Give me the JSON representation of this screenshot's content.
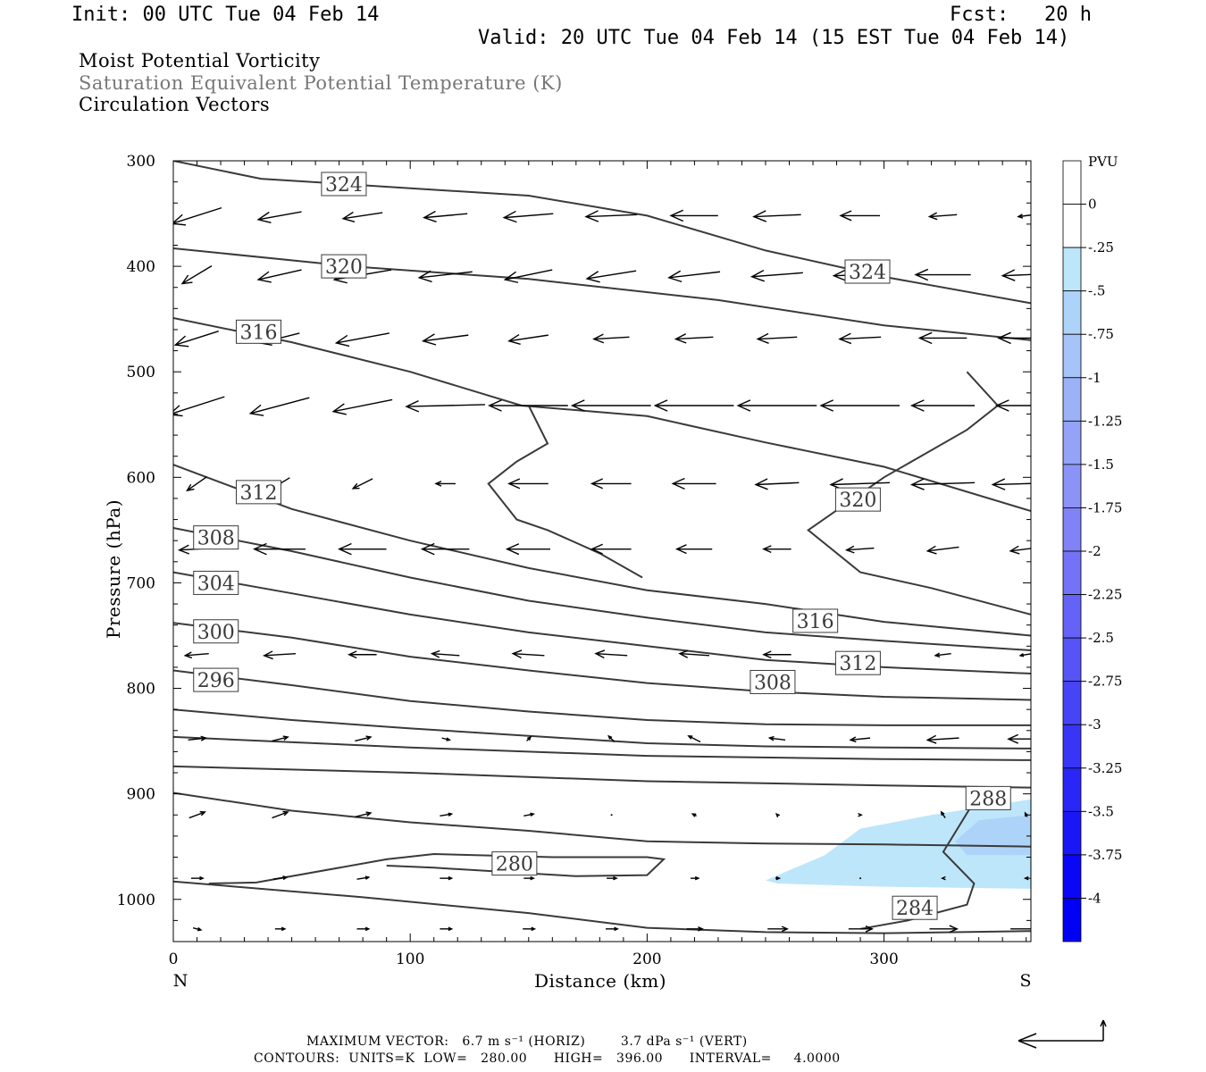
{
  "header": {
    "init": "Init: 00 UTC Tue 04 Feb 14",
    "fcst": "Fcst:   20 h",
    "valid": "Valid: 20 UTC Tue 04 Feb 14 (15 EST Tue 04 Feb 14)"
  },
  "titles": {
    "line1": "Moist Potential Vorticity",
    "line2": "Saturation Equivalent Potential Temperature (K)",
    "line3": "Circulation Vectors"
  },
  "chart_data": {
    "type": "cross-section",
    "xlabel": "Distance (km)",
    "ylabel": "Pressure (hPa)",
    "xlim": [
      0,
      362
    ],
    "ylim": [
      1040,
      300
    ],
    "x_ticks": [
      0,
      100,
      200,
      300
    ],
    "y_ticks": [
      300,
      400,
      500,
      600,
      700,
      800,
      900,
      1000
    ],
    "x_end_labels": {
      "left": "N",
      "right": "S"
    },
    "colors": {
      "line": "#3a3a3a",
      "pv_light": "#bde6fb",
      "pv_mid": "#aed3f8",
      "vector": "#000000"
    },
    "colorbar": {
      "title": "PVU",
      "labels": [
        "0",
        "-.25",
        "-.5",
        "-.75",
        "-1",
        "-1.25",
        "-1.5",
        "-1.75",
        "-2",
        "-2.25",
        "-2.5",
        "-2.75",
        "-3",
        "-3.25",
        "-3.5",
        "-3.75",
        "-4"
      ],
      "colors": [
        "#ffffff",
        "#ffffff",
        "#bde6fb",
        "#aed3f8",
        "#a6c4f7",
        "#9cb2f7",
        "#94a2f7",
        "#8c93f7",
        "#8182f7",
        "#7473f7",
        "#6563f7",
        "#5653f7",
        "#4744f7",
        "#3835f7",
        "#2926f7",
        "#1a17f7",
        "#0a07f7",
        "#0000f5"
      ]
    },
    "contour_labels": [
      {
        "text": "324",
        "x": 72,
        "p": 322
      },
      {
        "text": "324",
        "x": 293,
        "p": 405
      },
      {
        "text": "320",
        "x": 72,
        "p": 400
      },
      {
        "text": "320",
        "x": 289,
        "p": 621
      },
      {
        "text": "316",
        "x": 36,
        "p": 462
      },
      {
        "text": "316",
        "x": 271,
        "p": 736
      },
      {
        "text": "312",
        "x": 36,
        "p": 614
      },
      {
        "text": "312",
        "x": 289,
        "p": 776
      },
      {
        "text": "308",
        "x": 18,
        "p": 657
      },
      {
        "text": "308",
        "x": 253,
        "p": 794
      },
      {
        "text": "304",
        "x": 18,
        "p": 700
      },
      {
        "text": "300",
        "x": 18,
        "p": 746
      },
      {
        "text": "296",
        "x": 18,
        "p": 792
      },
      {
        "text": "288",
        "x": 344,
        "p": 904
      },
      {
        "text": "284",
        "x": 313,
        "p": 1008
      },
      {
        "text": "280",
        "x": 144,
        "p": 966
      }
    ],
    "theta_e_contours": [
      {
        "points": [
          [
            0,
            300
          ],
          [
            37,
            317
          ],
          [
            100,
            326
          ],
          [
            150,
            333
          ],
          [
            200,
            352
          ],
          [
            250,
            385
          ],
          [
            300,
            410
          ],
          [
            362,
            435
          ]
        ]
      },
      {
        "points": [
          [
            0,
            383
          ],
          [
            75,
            400
          ],
          [
            150,
            412
          ],
          [
            230,
            432
          ],
          [
            300,
            456
          ],
          [
            362,
            470
          ]
        ]
      },
      {
        "points": [
          [
            0,
            449
          ],
          [
            50,
            472
          ],
          [
            100,
            500
          ],
          [
            147,
            532
          ],
          [
            200,
            542
          ],
          [
            250,
            567
          ],
          [
            300,
            590
          ],
          [
            362,
            632
          ]
        ]
      },
      {
        "points": [
          [
            0,
            588
          ],
          [
            50,
            630
          ],
          [
            100,
            660
          ],
          [
            150,
            686
          ],
          [
            200,
            707
          ],
          [
            250,
            720
          ],
          [
            300,
            737
          ],
          [
            362,
            750
          ]
        ]
      },
      {
        "points": [
          [
            0,
            648
          ],
          [
            50,
            670
          ],
          [
            100,
            695
          ],
          [
            150,
            717
          ],
          [
            200,
            733
          ],
          [
            250,
            747
          ],
          [
            300,
            755
          ],
          [
            362,
            764
          ]
        ]
      },
      {
        "points": [
          [
            0,
            690
          ],
          [
            50,
            710
          ],
          [
            100,
            730
          ],
          [
            150,
            747
          ],
          [
            200,
            760
          ],
          [
            250,
            773
          ],
          [
            300,
            780
          ],
          [
            362,
            786
          ]
        ]
      },
      {
        "points": [
          [
            0,
            738
          ],
          [
            50,
            752
          ],
          [
            100,
            770
          ],
          [
            150,
            783
          ],
          [
            200,
            795
          ],
          [
            250,
            803
          ],
          [
            300,
            808
          ],
          [
            362,
            811
          ]
        ]
      },
      {
        "points": [
          [
            0,
            783
          ],
          [
            50,
            797
          ],
          [
            100,
            812
          ],
          [
            150,
            822
          ],
          [
            200,
            830
          ],
          [
            250,
            834
          ],
          [
            300,
            835
          ],
          [
            362,
            835
          ]
        ]
      },
      {
        "points": [
          [
            0,
            820
          ],
          [
            50,
            830
          ],
          [
            100,
            838
          ],
          [
            150,
            845
          ],
          [
            200,
            852
          ],
          [
            250,
            855
          ],
          [
            300,
            856
          ],
          [
            362,
            857
          ]
        ]
      },
      {
        "points": [
          [
            0,
            846
          ],
          [
            100,
            856
          ],
          [
            200,
            864
          ],
          [
            300,
            867
          ],
          [
            362,
            868
          ]
        ]
      },
      {
        "points": [
          [
            0,
            874
          ],
          [
            100,
            880
          ],
          [
            200,
            888
          ],
          [
            300,
            892
          ],
          [
            362,
            894
          ]
        ]
      },
      {
        "points": [
          [
            0,
            899
          ],
          [
            50,
            916
          ],
          [
            100,
            927
          ],
          [
            150,
            935
          ],
          [
            200,
            945
          ],
          [
            250,
            947
          ],
          [
            300,
            948
          ],
          [
            362,
            950
          ]
        ]
      },
      {
        "points": [
          [
            0,
            983
          ],
          [
            80,
            998
          ],
          [
            150,
            1013
          ],
          [
            200,
            1027
          ],
          [
            250,
            1031
          ],
          [
            300,
            1032
          ],
          [
            362,
            1030
          ]
        ]
      },
      {
        "points": [
          [
            15,
            985
          ],
          [
            35,
            984
          ],
          [
            90,
            962
          ],
          [
            110,
            957
          ],
          [
            160,
            960
          ],
          [
            200,
            960
          ],
          [
            207,
            962
          ],
          [
            200,
            977
          ],
          [
            170,
            978
          ],
          [
            110,
            970
          ],
          [
            90,
            968
          ]
        ]
      },
      {
        "points": [
          [
            340,
            900
          ],
          [
            325,
            955
          ],
          [
            338,
            985
          ],
          [
            335,
            1005
          ],
          [
            310,
            1020
          ],
          [
            290,
            1028
          ]
        ]
      },
      {
        "points": [
          [
            335,
            500
          ],
          [
            348,
            532
          ],
          [
            335,
            555
          ],
          [
            300,
            600
          ],
          [
            268,
            650
          ],
          [
            290,
            690
          ],
          [
            320,
            705
          ],
          [
            362,
            730
          ]
        ]
      },
      {
        "points": [
          [
            150,
            532
          ],
          [
            158,
            568
          ],
          [
            145,
            585
          ],
          [
            133,
            606
          ],
          [
            145,
            640
          ],
          [
            158,
            650
          ],
          [
            180,
            672
          ],
          [
            198,
            695
          ]
        ]
      }
    ],
    "pv_regions": [
      {
        "value": -0.5,
        "points": [
          [
            250,
            982
          ],
          [
            275,
            958
          ],
          [
            290,
            933
          ],
          [
            320,
            920
          ],
          [
            362,
            905
          ],
          [
            362,
            990
          ],
          [
            300,
            988
          ],
          [
            255,
            985
          ]
        ]
      },
      {
        "value": -0.75,
        "points": [
          [
            330,
            945
          ],
          [
            340,
            925
          ],
          [
            362,
            920
          ],
          [
            362,
            958
          ],
          [
            335,
            958
          ]
        ]
      }
    ],
    "vectors": {
      "x": [
        10,
        45,
        80,
        115,
        150,
        185,
        220,
        255,
        290,
        325,
        360
      ],
      "p": [
        352,
        408,
        468,
        532,
        606,
        668,
        768,
        848,
        920,
        980,
        1028
      ],
      "u": [
        [
          -25,
          -22,
          -20,
          -22,
          -25,
          -26,
          -24,
          -24,
          -20,
          -14,
          -8
        ],
        [
          -15,
          -22,
          -29,
          -27,
          -24,
          -25,
          -26,
          -26,
          -27,
          -28,
          -24
        ],
        [
          -22,
          -20,
          -27,
          -23,
          -20,
          -18,
          -19,
          -20,
          -21,
          -24,
          -28
        ],
        [
          -28,
          -30,
          -30,
          -40,
          -40,
          -40,
          -40,
          -40,
          -40,
          -32,
          -30
        ],
        [
          -10,
          -10,
          -10,
          -10,
          -20,
          -20,
          -22,
          -22,
          -30,
          -32,
          -34
        ],
        [
          -18,
          -26,
          -24,
          -24,
          -22,
          -20,
          -18,
          -14,
          -14,
          -16,
          -16
        ],
        [
          -12,
          -16,
          -14,
          -14,
          -16,
          -16,
          -15,
          -14,
          -12,
          -8,
          -6
        ],
        [
          9,
          8,
          8,
          4,
          2,
          -3,
          -6,
          -8,
          -10,
          -16,
          -18
        ],
        [
          8,
          8,
          8,
          6,
          5,
          0,
          -2,
          -1,
          1,
          -2,
          -1
        ],
        [
          6,
          7,
          6,
          6,
          5,
          5,
          4,
          2,
          0,
          -1,
          -1
        ],
        [
          4,
          5,
          6,
          6,
          6,
          6,
          8,
          10,
          12,
          14,
          16
        ]
      ],
      "w": [
        [
          -8,
          -4,
          -3,
          -2,
          -2,
          -1,
          0,
          -1,
          0,
          -1,
          -1
        ],
        [
          -9,
          -5,
          -5,
          -3,
          -5,
          -4,
          -3,
          -2,
          -1,
          0,
          -1
        ],
        [
          -7,
          -5,
          -5,
          -3,
          -3,
          -1,
          -1,
          -1,
          -1,
          0,
          0
        ],
        [
          -9,
          -8,
          -6,
          -1,
          0,
          0,
          0,
          0,
          0,
          0,
          0
        ],
        [
          -7,
          -6,
          -5,
          0,
          0,
          0,
          0,
          -1,
          -1,
          -1,
          -1
        ],
        [
          -1,
          0,
          0,
          0,
          0,
          0,
          0,
          0,
          -1,
          -2,
          -2
        ],
        [
          -1,
          -1,
          0,
          1,
          1,
          1,
          1,
          0,
          0,
          -1,
          -1
        ],
        [
          1,
          2,
          2,
          -1,
          2,
          3,
          3,
          1,
          -1,
          -1,
          0
        ],
        [
          3,
          3,
          2,
          1,
          1,
          0,
          1,
          1,
          0,
          3,
          2
        ],
        [
          0,
          1,
          1,
          0,
          0,
          0,
          0,
          0,
          0,
          0,
          0
        ],
        [
          -1,
          0,
          0,
          0,
          0,
          0,
          0,
          0,
          0,
          0,
          0
        ]
      ]
    },
    "reference_vector_label": "MAXIMUM VECTOR:   6.7 m s⁻¹ (HORIZ)        3.7 dPa s⁻¹ (VERT)",
    "contour_info": "CONTOURS:  UNITS=K  LOW=   280.00      HIGH=   396.00      INTERVAL=     4.0000"
  }
}
